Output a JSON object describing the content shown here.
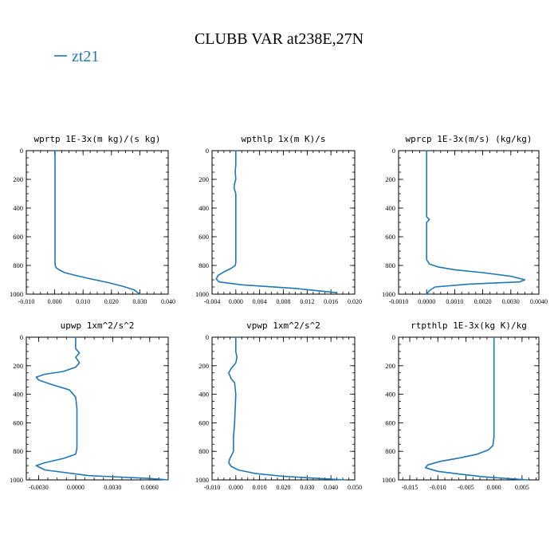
{
  "figure": {
    "title": "CLUBB VAR at238E,27N",
    "legend": [
      {
        "label": "zt21",
        "color": "#1f77b4"
      }
    ]
  },
  "chart_data": [
    {
      "type": "line",
      "title": "wprtp  1E-3x(m kg)/(s kg)",
      "series_name": "zt21",
      "color": "#1f77b4",
      "xlim": [
        -0.01,
        0.04
      ],
      "ylim": [
        1000,
        0
      ],
      "xticks": [
        -0.01,
        0.0,
        0.01,
        0.02,
        0.03,
        0.04
      ],
      "xticklabels": [
        "-0.010",
        "0.000",
        "0.010",
        "0.020",
        "0.030",
        "0.040"
      ],
      "yticks": [
        0,
        200,
        400,
        600,
        800,
        1000
      ],
      "yticklabels": [
        "0",
        "200",
        "400",
        "600",
        "800",
        "1000"
      ],
      "x": [
        0.0001,
        0.0001,
        0.0001,
        0.0001,
        0.0001,
        0.0001,
        0.0001,
        0.0001,
        0.0001,
        0.0002,
        0.0005,
        0.0015,
        0.0035,
        0.0075,
        0.013,
        0.019,
        0.024,
        0.028,
        0.03
      ],
      "y": [
        0,
        100,
        200,
        300,
        400,
        500,
        600,
        700,
        780,
        800,
        815,
        830,
        850,
        870,
        895,
        920,
        945,
        970,
        1000
      ]
    },
    {
      "type": "line",
      "title": "wpthlp  1x(m K)/s",
      "series_name": "zt21",
      "color": "#1f77b4",
      "xlim": [
        -0.004,
        0.02
      ],
      "ylim": [
        1000,
        0
      ],
      "xticks": [
        -0.004,
        0.0,
        0.004,
        0.008,
        0.012,
        0.016,
        0.02
      ],
      "xticklabels": [
        "-0.004",
        "0.000",
        "0.004",
        "0.008",
        "0.012",
        "0.016",
        "0.020"
      ],
      "yticks": [
        0,
        200,
        400,
        600,
        800,
        1000
      ],
      "yticklabels": [
        "0",
        "200",
        "400",
        "600",
        "800",
        "1000"
      ],
      "x": [
        0.0,
        0.0,
        -0.0001,
        0.0,
        -0.0002,
        -0.0003,
        0.0,
        0.0,
        0.0,
        0.0,
        0.0,
        -0.0001,
        -0.0008,
        -0.002,
        -0.003,
        -0.0033,
        -0.0028,
        0.001,
        0.01,
        0.017
      ],
      "y": [
        0,
        100,
        140,
        200,
        230,
        260,
        300,
        400,
        600,
        700,
        780,
        800,
        820,
        845,
        870,
        895,
        915,
        935,
        960,
        990
      ]
    },
    {
      "type": "line",
      "title": "wprcp  1E-3x(m/s) (kg/kg)",
      "series_name": "zt21",
      "color": "#1f77b4",
      "xlim": [
        -0.001,
        0.004
      ],
      "ylim": [
        1000,
        0
      ],
      "xticks": [
        -0.001,
        0.0,
        0.001,
        0.002,
        0.003,
        0.004
      ],
      "xticklabels": [
        "-0.0010",
        "0.0000",
        "0.0010",
        "0.0020",
        "0.0030",
        "0.0040"
      ],
      "yticks": [
        0,
        200,
        400,
        600,
        800,
        1000
      ],
      "yticklabels": [
        "0",
        "200",
        "400",
        "600",
        "800",
        "1000"
      ],
      "x": [
        0.0,
        0.0,
        0.0,
        0.0,
        0.0001,
        0.0,
        0.0,
        0.0,
        0.0001,
        0.0004,
        0.001,
        0.002,
        0.003,
        0.0035,
        0.0033,
        0.0015,
        0.0003,
        0.0001,
        0.0
      ],
      "y": [
        0,
        200,
        400,
        460,
        480,
        500,
        600,
        760,
        790,
        810,
        830,
        850,
        875,
        900,
        915,
        930,
        950,
        975,
        1000
      ]
    },
    {
      "type": "line",
      "title": "upwp  1xm^2/s^2",
      "series_name": "zt21",
      "color": "#1f77b4",
      "xlim": [
        -0.004,
        0.0075
      ],
      "ylim": [
        1000,
        0
      ],
      "xticks": [
        -0.003,
        0.0,
        0.003,
        0.006
      ],
      "xticklabels": [
        "-0.0030",
        "0.0000",
        "0.0030",
        "0.0060"
      ],
      "yticks": [
        0,
        200,
        400,
        600,
        800,
        1000
      ],
      "yticklabels": [
        "0",
        "200",
        "400",
        "600",
        "800",
        "1000"
      ],
      "x": [
        0.0,
        0.0,
        0.0003,
        0.0,
        0.0003,
        0.0,
        -0.001,
        -0.0025,
        -0.0032,
        -0.003,
        -0.002,
        -0.0005,
        0.0,
        0.0001,
        0.0001,
        0.0001,
        0.0001,
        0.0,
        -0.001,
        -0.0025,
        -0.0032,
        -0.0025,
        0.001,
        0.006,
        0.0075
      ],
      "y": [
        0,
        80,
        110,
        140,
        180,
        210,
        240,
        260,
        280,
        300,
        330,
        370,
        420,
        500,
        600,
        700,
        780,
        820,
        850,
        880,
        900,
        930,
        970,
        990,
        1000
      ]
    },
    {
      "type": "line",
      "title": "vpwp  1xm^2/s^2",
      "series_name": "zt21",
      "color": "#1f77b4",
      "xlim": [
        -0.01,
        0.05
      ],
      "ylim": [
        1000,
        0
      ],
      "xticks": [
        -0.01,
        0.0,
        0.01,
        0.02,
        0.03,
        0.04,
        0.05
      ],
      "xticklabels": [
        "-0.010",
        "0.000",
        "0.010",
        "0.020",
        "0.030",
        "0.040",
        "0.050"
      ],
      "yticks": [
        0,
        200,
        400,
        600,
        800,
        1000
      ],
      "yticklabels": [
        "0",
        "200",
        "400",
        "600",
        "800",
        "1000"
      ],
      "x": [
        0.0,
        0.0,
        0.0005,
        0.0,
        -0.002,
        -0.003,
        -0.002,
        -0.0005,
        0.0,
        -0.0005,
        -0.001,
        -0.001,
        -0.0025,
        -0.003,
        -0.002,
        0.001,
        0.008,
        0.02,
        0.035,
        0.046
      ],
      "y": [
        0,
        100,
        140,
        180,
        220,
        250,
        290,
        320,
        400,
        600,
        700,
        800,
        850,
        880,
        905,
        930,
        955,
        975,
        990,
        1000
      ]
    },
    {
      "type": "line",
      "title": "rtpthlp  1E-3x(kg K)/kg",
      "series_name": "zt21",
      "color": "#1f77b4",
      "xlim": [
        -0.017,
        0.008
      ],
      "ylim": [
        1000,
        0
      ],
      "xticks": [
        -0.015,
        -0.01,
        -0.005,
        0.0,
        0.005
      ],
      "xticklabels": [
        "-0.015",
        "-0.010",
        "-0.005",
        "0.000",
        "0.005"
      ],
      "yticks": [
        0,
        200,
        400,
        600,
        800,
        1000
      ],
      "yticklabels": [
        "0",
        "200",
        "400",
        "600",
        "800",
        "1000"
      ],
      "x": [
        0.0,
        0.0,
        0.0,
        0.0,
        0.0,
        -0.0002,
        -0.001,
        -0.003,
        -0.006,
        -0.0095,
        -0.0118,
        -0.0122,
        -0.01,
        -0.006,
        -0.002,
        0.003,
        0.006
      ],
      "y": [
        0,
        200,
        400,
        600,
        700,
        760,
        790,
        820,
        845,
        870,
        895,
        915,
        940,
        960,
        978,
        992,
        1000
      ]
    }
  ]
}
